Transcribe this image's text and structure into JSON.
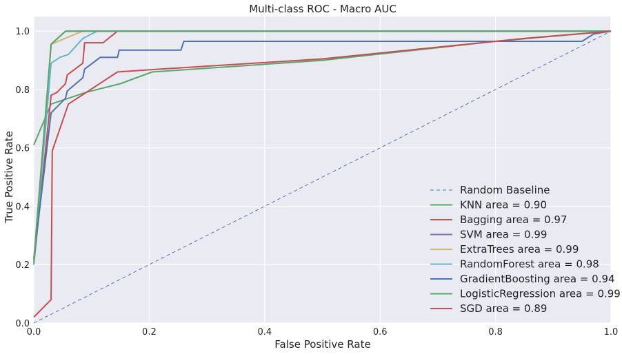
{
  "chart_data": {
    "type": "line",
    "title": "Multi-class ROC - Macro AUC",
    "xlabel": "False Positive Rate",
    "ylabel": "True Positive Rate",
    "xlim": [
      0.0,
      1.0
    ],
    "ylim": [
      0.0,
      1.05
    ],
    "xticks": [
      "0.0",
      "0.2",
      "0.4",
      "0.6",
      "0.8",
      "1.0"
    ],
    "yticks": [
      "0.0",
      "0.2",
      "0.4",
      "0.6",
      "0.8",
      "1.0"
    ],
    "grid": true,
    "legend_position": "lower-right",
    "baseline": {
      "name": "Random Baseline",
      "color": "#4c72b0",
      "style": "dashed",
      "points": [
        [
          0,
          0
        ],
        [
          1,
          1
        ]
      ]
    },
    "series": [
      {
        "name": "KNN area = 0.90",
        "color": "#55a868",
        "points": [
          [
            0,
            0.61
          ],
          [
            0.03,
            0.75
          ],
          [
            0.06,
            0.77
          ],
          [
            0.09,
            0.79
          ],
          [
            0.15,
            0.82
          ],
          [
            0.205,
            0.86
          ],
          [
            0.5,
            0.9
          ],
          [
            0.8,
            0.965
          ],
          [
            1.0,
            1.0
          ]
        ]
      },
      {
        "name": "Bagging area = 0.97",
        "color": "#c44e52",
        "points": [
          [
            0,
            0.2
          ],
          [
            0.03,
            0.78
          ],
          [
            0.04,
            0.79
          ],
          [
            0.055,
            0.82
          ],
          [
            0.058,
            0.85
          ],
          [
            0.085,
            0.89
          ],
          [
            0.088,
            0.96
          ],
          [
            0.12,
            0.96
          ],
          [
            0.145,
            1.0
          ],
          [
            1.0,
            1.0
          ]
        ]
      },
      {
        "name": "SVM area = 0.99",
        "color": "#8172b2",
        "points": [
          [
            0,
            0.2
          ],
          [
            0.03,
            0.955
          ],
          [
            0.055,
            1.0
          ],
          [
            1.0,
            1.0
          ]
        ]
      },
      {
        "name": "ExtraTrees area = 0.99",
        "color": "#ccb974",
        "points": [
          [
            0,
            0.22
          ],
          [
            0.03,
            0.955
          ],
          [
            0.06,
            0.98
          ],
          [
            0.085,
            1.0
          ],
          [
            1.0,
            1.0
          ]
        ]
      },
      {
        "name": "RandomForest area = 0.98",
        "color": "#64b5cd",
        "points": [
          [
            0,
            0.2
          ],
          [
            0.03,
            0.89
          ],
          [
            0.045,
            0.91
          ],
          [
            0.06,
            0.92
          ],
          [
            0.085,
            0.975
          ],
          [
            0.11,
            1.0
          ],
          [
            1.0,
            1.0
          ]
        ]
      },
      {
        "name": "GradientBoosting area = 0.94",
        "color": "#4c72b0",
        "points": [
          [
            0,
            0.22
          ],
          [
            0.03,
            0.72
          ],
          [
            0.055,
            0.77
          ],
          [
            0.058,
            0.795
          ],
          [
            0.085,
            0.84
          ],
          [
            0.088,
            0.87
          ],
          [
            0.115,
            0.91
          ],
          [
            0.145,
            0.91
          ],
          [
            0.148,
            0.935
          ],
          [
            0.255,
            0.935
          ],
          [
            0.26,
            0.965
          ],
          [
            0.95,
            0.965
          ],
          [
            0.97,
            0.99
          ],
          [
            1.0,
            1.0
          ]
        ]
      },
      {
        "name": "LogisticRegression area = 0.99",
        "color": "#55a868",
        "points": [
          [
            0,
            0.21
          ],
          [
            0.03,
            0.955
          ],
          [
            0.055,
            1.0
          ],
          [
            1.0,
            1.0
          ]
        ]
      },
      {
        "name": "SGD area = 0.89",
        "color": "#c44e52",
        "points": [
          [
            0,
            0.02
          ],
          [
            0.03,
            0.08
          ],
          [
            0.032,
            0.59
          ],
          [
            0.06,
            0.75
          ],
          [
            0.145,
            0.86
          ],
          [
            0.22,
            0.87
          ],
          [
            0.5,
            0.905
          ],
          [
            0.85,
            0.975
          ],
          [
            1.0,
            1.0
          ]
        ]
      }
    ]
  }
}
